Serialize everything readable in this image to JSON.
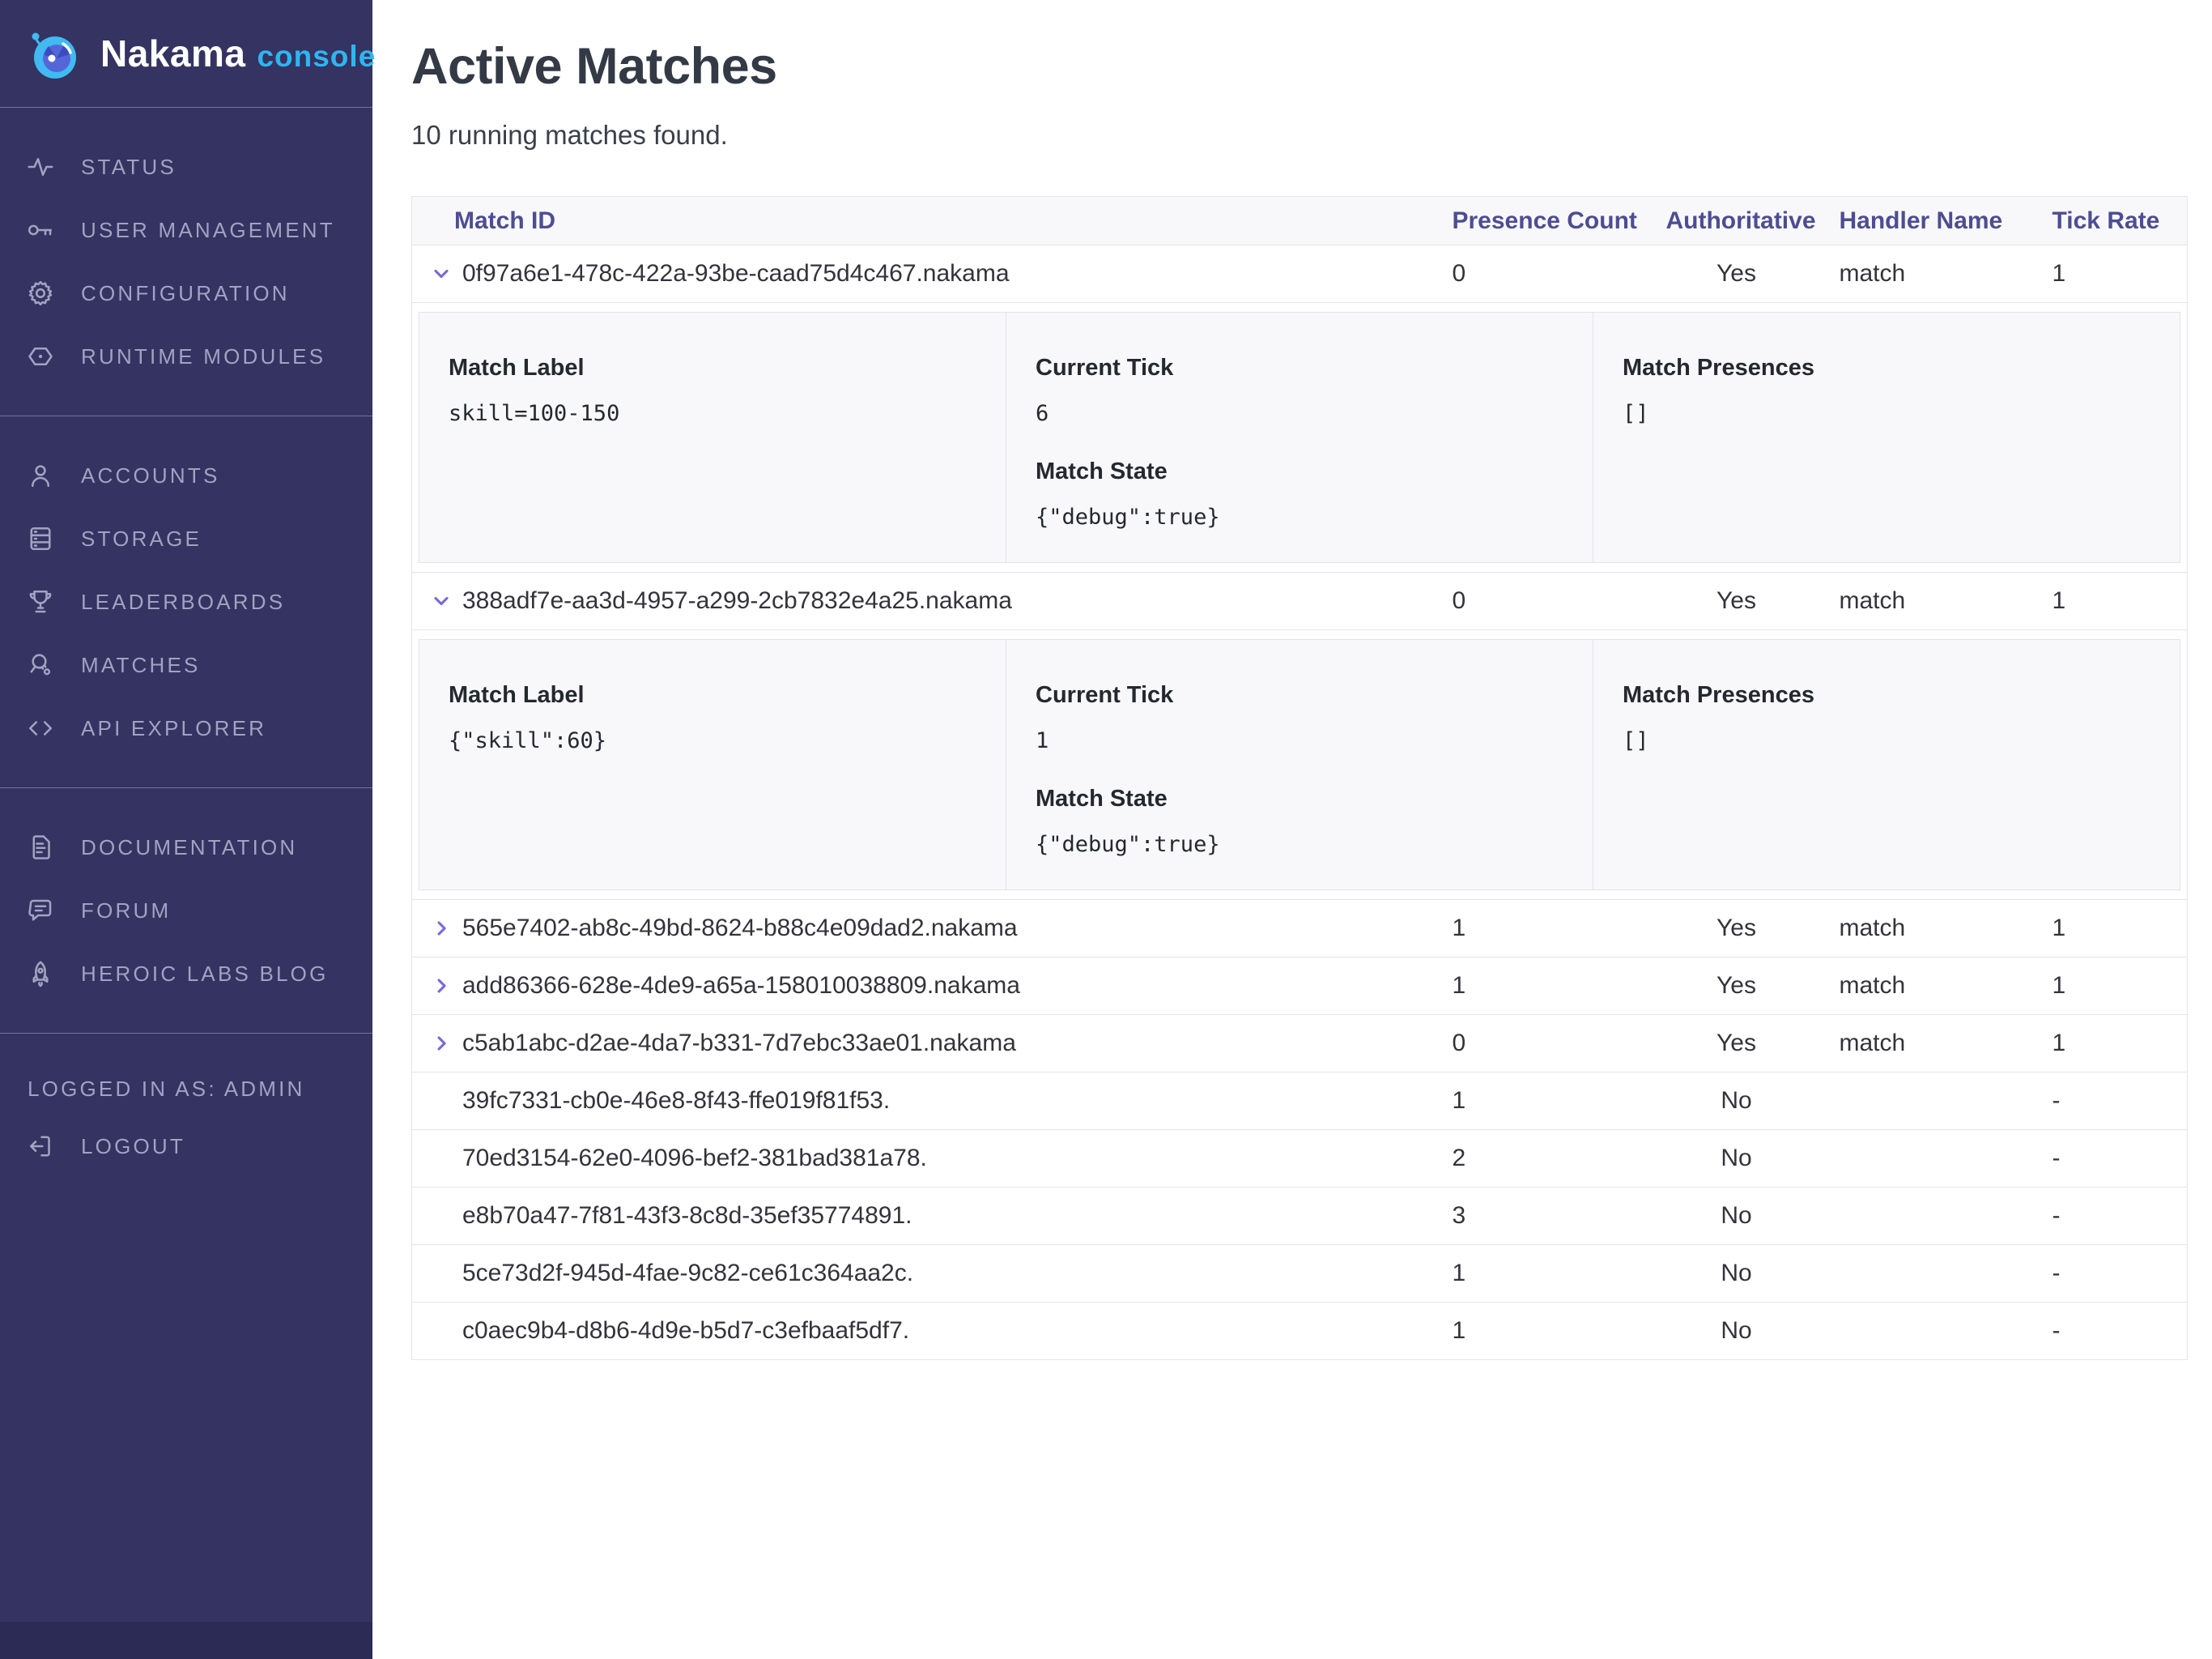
{
  "brand": {
    "name": "Nakama",
    "suffix": "console"
  },
  "colors": {
    "sidebar_bg": "#343361",
    "sidebar_footer_bg": "#2c2b55",
    "accent_blue": "#2fb5f0",
    "logo_blue": "#41b9f2",
    "logo_indigo": "#5566d8",
    "table_header_text": "#4d4d93",
    "chevron_purple": "#756bdb"
  },
  "sidebar": {
    "groups": [
      {
        "items": [
          {
            "label": "STATUS",
            "icon": "activity-icon"
          },
          {
            "label": "USER MANAGEMENT",
            "icon": "key-icon"
          },
          {
            "label": "CONFIGURATION",
            "icon": "gear-icon"
          },
          {
            "label": "RUNTIME MODULES",
            "icon": "module-hexagon-icon"
          }
        ]
      },
      {
        "items": [
          {
            "label": "ACCOUNTS",
            "icon": "user-icon"
          },
          {
            "label": "STORAGE",
            "icon": "storage-icon"
          },
          {
            "label": "LEADERBOARDS",
            "icon": "trophy-icon"
          },
          {
            "label": "MATCHES",
            "icon": "match-search-icon"
          },
          {
            "label": "API EXPLORER",
            "icon": "code-icon"
          }
        ]
      },
      {
        "items": [
          {
            "label": "DOCUMENTATION",
            "icon": "document-icon"
          },
          {
            "label": "FORUM",
            "icon": "forum-icon"
          },
          {
            "label": "HEROIC LABS BLOG",
            "icon": "rocket-icon"
          }
        ]
      }
    ],
    "logged_in_as": "LOGGED IN AS: ADMIN",
    "logout": {
      "label": "LOGOUT",
      "icon": "logout-icon"
    }
  },
  "page": {
    "title": "Active Matches",
    "subtitle": "10 running matches found."
  },
  "table": {
    "headers": [
      "Match ID",
      "Presence Count",
      "Authoritative",
      "Handler Name",
      "Tick Rate"
    ],
    "detail_labels": {
      "match_label": "Match Label",
      "current_tick": "Current Tick",
      "match_state": "Match State",
      "match_presences": "Match Presences"
    },
    "rows": [
      {
        "match_id": "0f97a6e1-478c-422a-93be-caad75d4c467.nakama",
        "presence_count": "0",
        "authoritative": "Yes",
        "handler_name": "match",
        "tick_rate": "1",
        "chevron": "down",
        "details": {
          "match_label": "skill=100-150",
          "current_tick": "6",
          "match_state": "{\"debug\":true}",
          "match_presences": "[]"
        }
      },
      {
        "match_id": "388adf7e-aa3d-4957-a299-2cb7832e4a25.nakama",
        "presence_count": "0",
        "authoritative": "Yes",
        "handler_name": "match",
        "tick_rate": "1",
        "chevron": "down",
        "details": {
          "match_label": "{\"skill\":60}",
          "current_tick": "1",
          "match_state": "{\"debug\":true}",
          "match_presences": "[]"
        }
      },
      {
        "match_id": "565e7402-ab8c-49bd-8624-b88c4e09dad2.nakama",
        "presence_count": "1",
        "authoritative": "Yes",
        "handler_name": "match",
        "tick_rate": "1",
        "chevron": "right",
        "details": null
      },
      {
        "match_id": "add86366-628e-4de9-a65a-158010038809.nakama",
        "presence_count": "1",
        "authoritative": "Yes",
        "handler_name": "match",
        "tick_rate": "1",
        "chevron": "right",
        "details": null
      },
      {
        "match_id": "c5ab1abc-d2ae-4da7-b331-7d7ebc33ae01.nakama",
        "presence_count": "0",
        "authoritative": "Yes",
        "handler_name": "match",
        "tick_rate": "1",
        "chevron": "right",
        "details": null
      },
      {
        "match_id": "39fc7331-cb0e-46e8-8f43-ffe019f81f53.",
        "presence_count": "1",
        "authoritative": "No",
        "handler_name": "",
        "tick_rate": "-",
        "chevron": "none",
        "details": null
      },
      {
        "match_id": "70ed3154-62e0-4096-bef2-381bad381a78.",
        "presence_count": "2",
        "authoritative": "No",
        "handler_name": "",
        "tick_rate": "-",
        "chevron": "none",
        "details": null
      },
      {
        "match_id": "e8b70a47-7f81-43f3-8c8d-35ef35774891.",
        "presence_count": "3",
        "authoritative": "No",
        "handler_name": "",
        "tick_rate": "-",
        "chevron": "none",
        "details": null
      },
      {
        "match_id": "5ce73d2f-945d-4fae-9c82-ce61c364aa2c.",
        "presence_count": "1",
        "authoritative": "No",
        "handler_name": "",
        "tick_rate": "-",
        "chevron": "none",
        "details": null
      },
      {
        "match_id": "c0aec9b4-d8b6-4d9e-b5d7-c3efbaaf5df7.",
        "presence_count": "1",
        "authoritative": "No",
        "handler_name": "",
        "tick_rate": "-",
        "chevron": "none",
        "details": null
      }
    ]
  }
}
